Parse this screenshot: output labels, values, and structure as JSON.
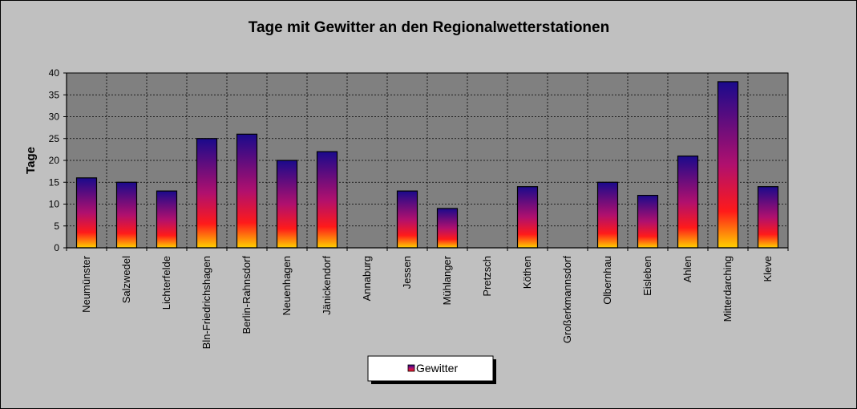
{
  "chart_data": {
    "type": "bar",
    "title": "Tage mit Gewitter  an den Regionalwetterstationen",
    "xlabel": "",
    "ylabel": "Tage",
    "ylim": [
      0,
      40
    ],
    "yticks": [
      0,
      5,
      10,
      15,
      20,
      25,
      30,
      35,
      40
    ],
    "grid": true,
    "legend_position": "bottom-center",
    "categories": [
      "Neumünster",
      "Salzwedel",
      "Lichterfelde",
      "Bln-Friedrichshagen",
      "Berlin-Rahnsdorf",
      "Neuenhagen",
      "Jänickendorf",
      "Annaburg",
      "Jessen",
      "Mühlanger",
      "Pretzsch",
      "Köthen",
      "Großerkmannsdorf",
      "Olbernhau",
      "Eisleben",
      "Ahlen",
      "Mitterdarching",
      "Kleve"
    ],
    "series": [
      {
        "name": "Gewitter",
        "values": [
          16,
          15,
          13,
          25,
          26,
          20,
          22,
          0,
          13,
          9,
          0,
          14,
          0,
          15,
          12,
          21,
          38,
          14
        ]
      }
    ],
    "colors": {
      "background": "#c0c0c0",
      "plot_area": "#808080",
      "bar_top": "#1a0a8c",
      "bar_mid": "#b0106e",
      "bar_low": "#ff1a1a",
      "bar_bottom": "#ffd000"
    }
  }
}
